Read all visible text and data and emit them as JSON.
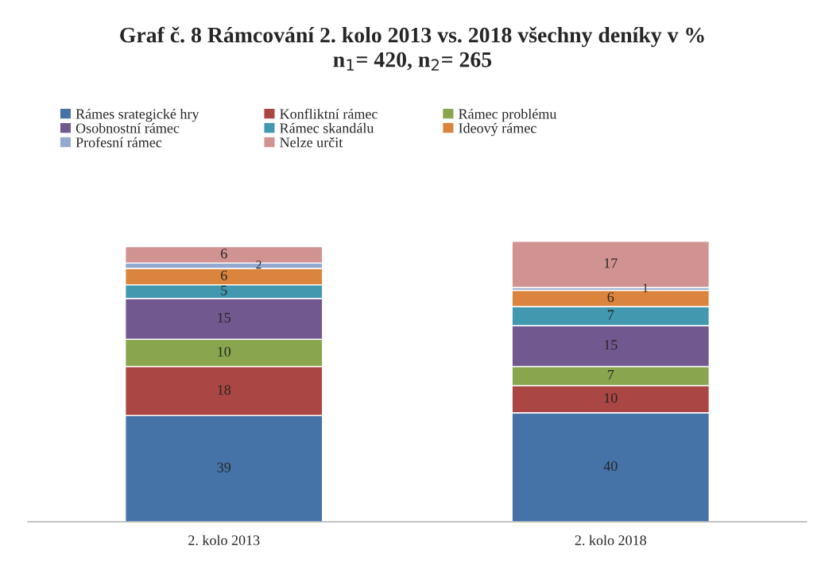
{
  "chart_data": {
    "type": "bar",
    "stacked": true,
    "title": "Graf č. 8 Rámcování 2. kolo 2013 vs. 2018 všechny deníky v %\nn$_{1}$= 420, n$_{2}$= 265",
    "categories": [
      "2. kolo 2013",
      "2. kolo 2018"
    ],
    "series": [
      {
        "name": "Rámes srategické hry",
        "color": "#4572a7",
        "values": [
          39,
          40
        ]
      },
      {
        "name": "Konfliktní rámec",
        "color": "#aa4643",
        "values": [
          18,
          10
        ]
      },
      {
        "name": "Rámec problému",
        "color": "#89a54e",
        "values": [
          10,
          7
        ]
      },
      {
        "name": "Osobnostní rámec",
        "color": "#71588f",
        "values": [
          15,
          15
        ]
      },
      {
        "name": "Rámec skandálu",
        "color": "#4198af",
        "values": [
          5,
          7
        ]
      },
      {
        "name": "Ideový rámec",
        "color": "#db843d",
        "values": [
          6,
          6
        ]
      },
      {
        "name": "Profesní rámec",
        "color": "#93a9cf",
        "values": [
          2,
          1
        ]
      },
      {
        "name": "Nelze určit",
        "color": "#d19392",
        "values": [
          6,
          17
        ]
      }
    ],
    "data_labels": true,
    "legend": "top",
    "grid": false
  }
}
